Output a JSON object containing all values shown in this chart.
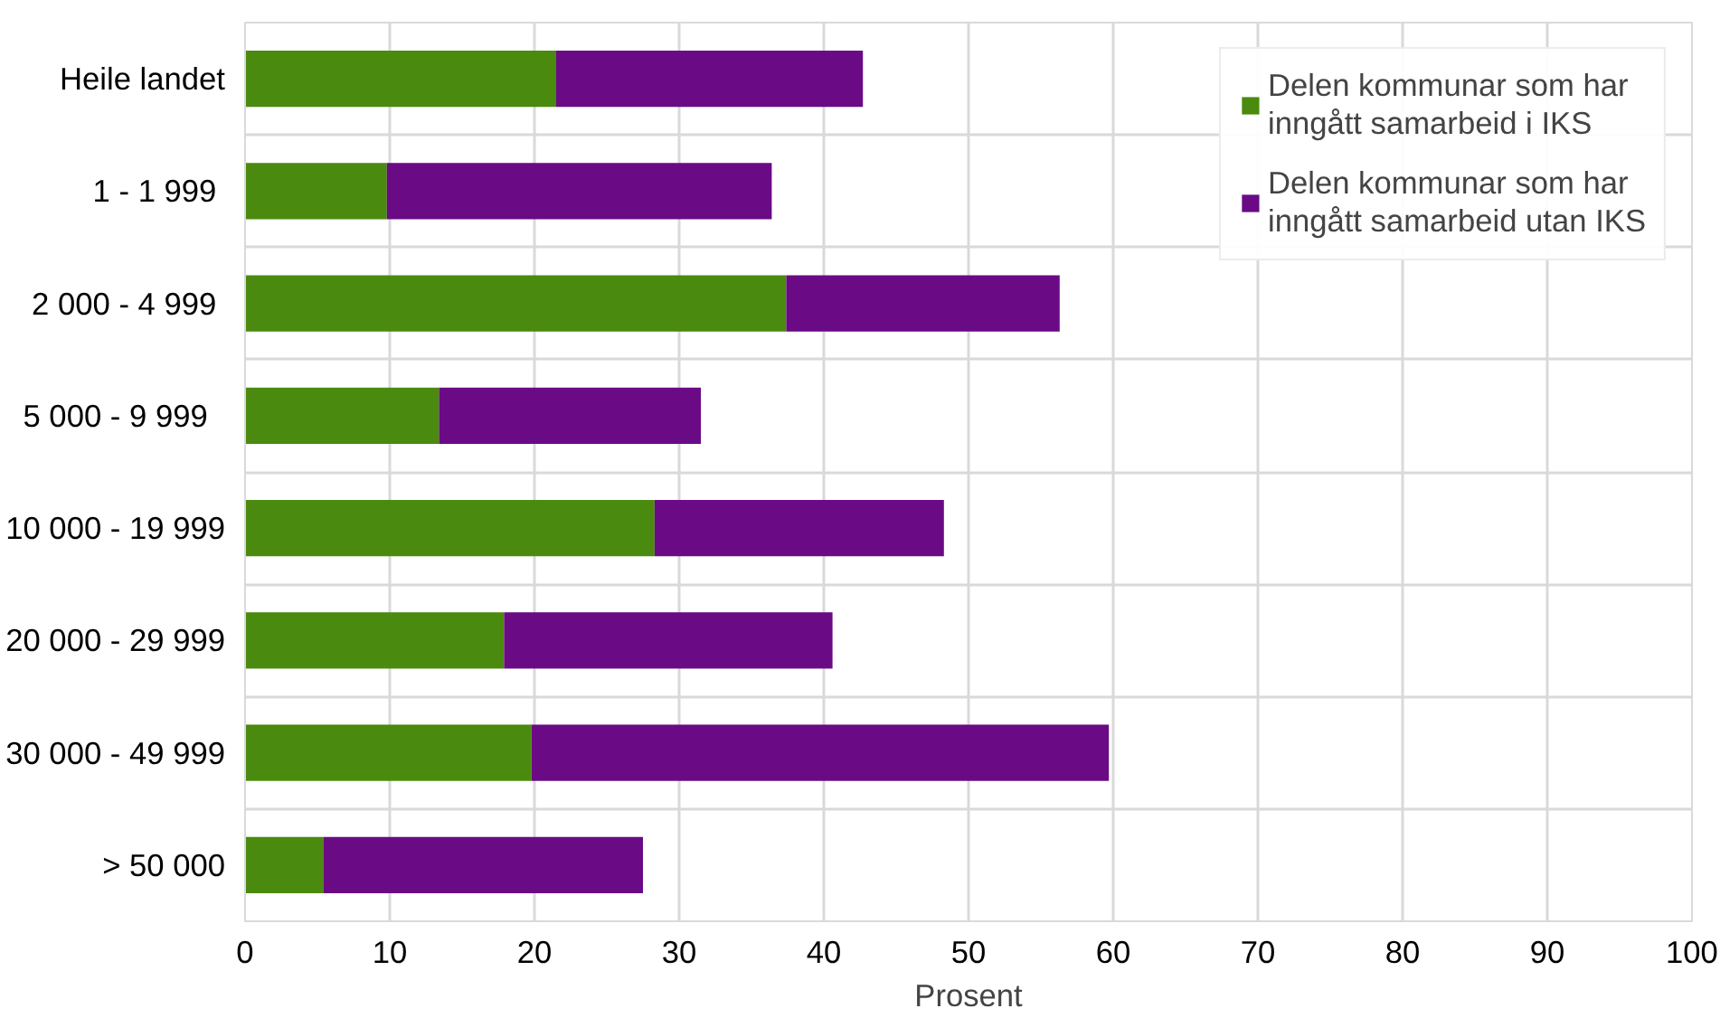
{
  "chart_data": {
    "type": "bar",
    "orientation": "horizontal",
    "stacked": true,
    "xlabel": "Prosent",
    "categories": [
      "Heile landet",
      "1  - 1 999",
      "2 000  - 4 999",
      "5 000  -  9 999",
      "10 000 - 19 999",
      "20 000 - 29 999",
      "30 000 - 49 999",
      "> 50 000"
    ],
    "series": [
      {
        "name": "Delen kommunar som har inngått samarbeid i IKS",
        "color": "#4a8a0e",
        "values": [
          21.5,
          9.8,
          37.4,
          13.4,
          28.3,
          17.9,
          19.8,
          5.4
        ]
      },
      {
        "name": "Delen kommunar som har inngått samarbeid utan IKS",
        "color": "#6a0a85",
        "values": [
          21.2,
          26.6,
          18.9,
          18.1,
          20.0,
          22.7,
          39.9,
          22.1
        ]
      }
    ],
    "xlim": [
      0,
      100
    ],
    "xticks": [
      0,
      10,
      20,
      30,
      40,
      50,
      60,
      70,
      80,
      90,
      100
    ],
    "grid": true,
    "legend": "top right"
  }
}
